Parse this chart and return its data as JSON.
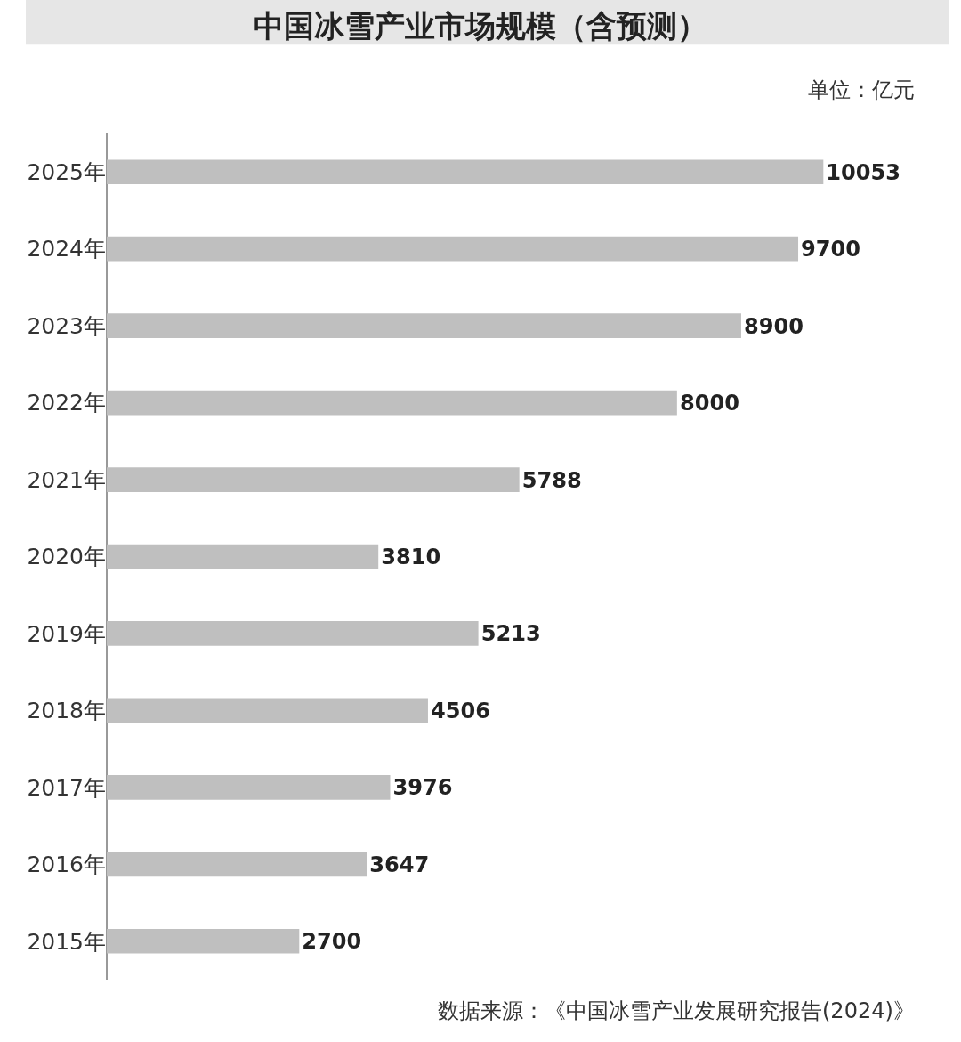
{
  "chart_data": {
    "type": "bar",
    "orientation": "horizontal",
    "title": "中国冰雪产业市场规模（含预测）",
    "categories": [
      "2025年",
      "2024年",
      "2023年",
      "2022年",
      "2021年",
      "2020年",
      "2019年",
      "2018年",
      "2017年",
      "2016年",
      "2015年"
    ],
    "values": [
      10053,
      9700,
      8900,
      8000,
      5788,
      3810,
      5213,
      4506,
      3976,
      3647,
      2700
    ],
    "color": "#bfbfbf",
    "data_labels": true,
    "grid": false,
    "legend": false,
    "annotations": [
      "单位：亿元",
      "数据来源：《中国冰雪产业发展研究报告(2024)》"
    ]
  }
}
